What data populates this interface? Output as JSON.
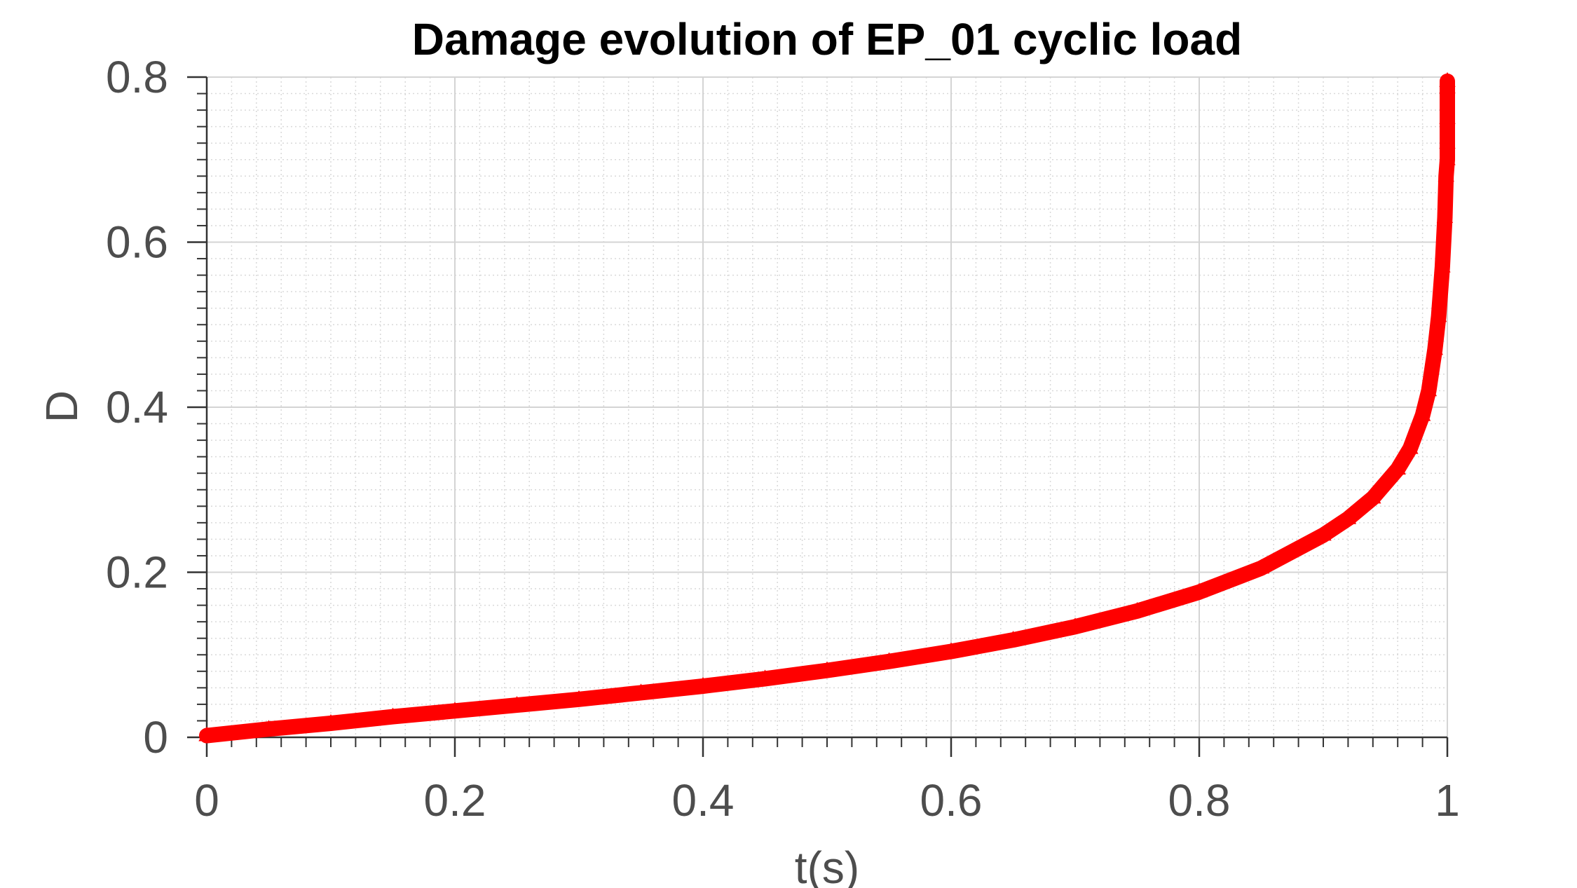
{
  "chart_data": {
    "type": "scatter",
    "title": "Damage evolution of EP_01 cyclic load",
    "xlabel": "t(s)",
    "ylabel": "D",
    "xlim": [
      0,
      1
    ],
    "ylim": [
      0,
      0.8
    ],
    "xticks": [
      0,
      0.2,
      0.4,
      0.6,
      0.8,
      1
    ],
    "xtick_labels": [
      "0",
      "0.2",
      "0.4",
      "0.6",
      "0.8",
      "1"
    ],
    "yticks": [
      0,
      0.2,
      0.4,
      0.6,
      0.8
    ],
    "ytick_labels": [
      "0",
      "0.2",
      "0.4",
      "0.6",
      "0.8"
    ],
    "grid": true,
    "minor_grid": true,
    "marker": "triangle-up",
    "series": [
      {
        "color": "#ff0000",
        "x": [
          0,
          0.05,
          0.1,
          0.15,
          0.2,
          0.25,
          0.3,
          0.35,
          0.4,
          0.45,
          0.5,
          0.55,
          0.6,
          0.65,
          0.7,
          0.75,
          0.8,
          0.85,
          0.9,
          0.92,
          0.94,
          0.96,
          0.97,
          0.98,
          0.985,
          0.99,
          0.993,
          0.996,
          0.998,
          0.999,
          1.0,
          1.0,
          1.0,
          1.0,
          1.0
        ],
        "y": [
          0.002,
          0.01,
          0.017,
          0.025,
          0.032,
          0.039,
          0.046,
          0.054,
          0.062,
          0.071,
          0.081,
          0.092,
          0.104,
          0.118,
          0.134,
          0.153,
          0.176,
          0.205,
          0.245,
          0.265,
          0.29,
          0.325,
          0.35,
          0.39,
          0.42,
          0.47,
          0.51,
          0.57,
          0.63,
          0.68,
          0.7,
          0.72,
          0.75,
          0.787,
          0.795
        ]
      }
    ]
  }
}
